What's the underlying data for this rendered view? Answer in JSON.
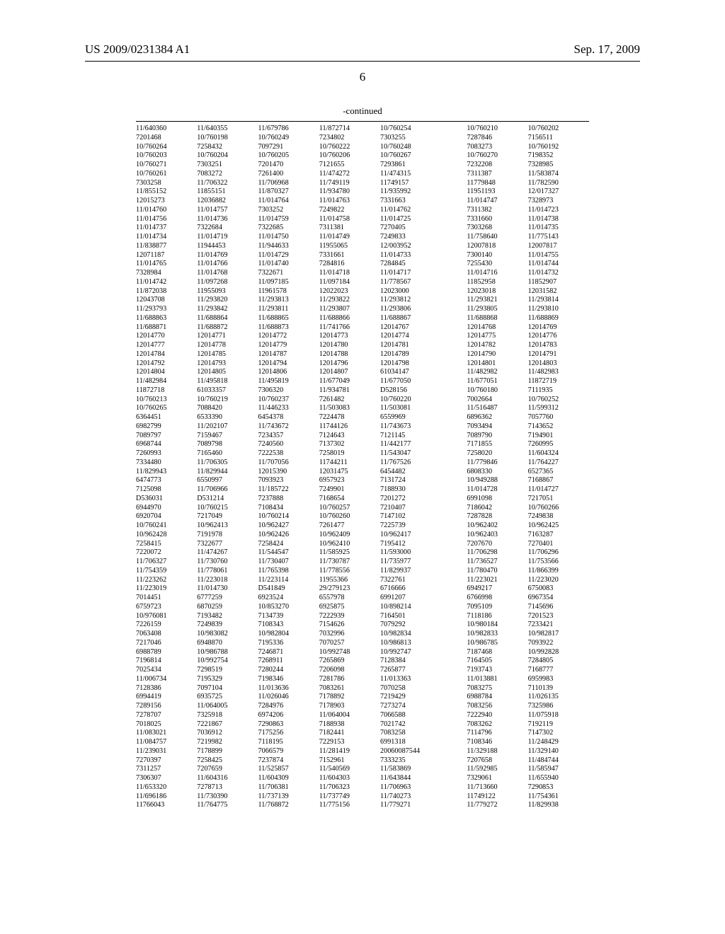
{
  "header": {
    "pub_number": "US 2009/0231384 A1",
    "pub_date": "Sep. 17, 2009"
  },
  "page_number": "6",
  "continued_label": "-continued",
  "table": {
    "columns": 7,
    "rows": [
      [
        "11/640360",
        "11/640355",
        "11/679786",
        "11/872714",
        "10/760254",
        "10/760210",
        "10/760202"
      ],
      [
        "7201468",
        "10/760198",
        "10/760249",
        "7234802",
        "7303255",
        "7287846",
        "7156511"
      ],
      [
        "10/760264",
        "7258432",
        "7097291",
        "10/760222",
        "10/760248",
        "7083273",
        "10/760192"
      ],
      [
        "10/760203",
        "10/760204",
        "10/760205",
        "10/760206",
        "10/760267",
        "10/760270",
        "7198352"
      ],
      [
        "10/760271",
        "7303251",
        "7201470",
        "7121655",
        "7293861",
        "7232208",
        "7328985"
      ],
      [
        "10/760261",
        "7083272",
        "7261400",
        "11/474272",
        "11/474315",
        "7311387",
        "11/583874"
      ],
      [
        "7303258",
        "11/706322",
        "11/706968",
        "11/749119",
        "11749157",
        "11779848",
        "11/782590"
      ],
      [
        "11/855152",
        "11855151",
        "11/870327",
        "11/934780",
        "11/935992",
        "11951193",
        "12/017327"
      ],
      [
        "12015273",
        "12036882",
        "11/014764",
        "11/014763",
        "7331663",
        "11/014747",
        "7328973"
      ],
      [
        "11/014760",
        "11/014757",
        "7303252",
        "7249822",
        "11/014762",
        "7311382",
        "11/014723"
      ],
      [
        "11/014756",
        "11/014736",
        "11/014759",
        "11/014758",
        "11/014725",
        "7331660",
        "11/014738"
      ],
      [
        "11/014737",
        "7322684",
        "7322685",
        "7311381",
        "7270405",
        "7303268",
        "11/014735"
      ],
      [
        "11/014734",
        "11/014719",
        "11/014750",
        "11/014749",
        "7249833",
        "11/758640",
        "11/775143"
      ],
      [
        "11/838877",
        "11944453",
        "11/944633",
        "11955065",
        "12/003952",
        "12007818",
        "12007817"
      ],
      [
        "12071187",
        "11/014769",
        "11/014729",
        "7331661",
        "11/014733",
        "7300140",
        "11/014755"
      ],
      [
        "11/014765",
        "11/014766",
        "11/014740",
        "7284816",
        "7284845",
        "7255430",
        "11/014744"
      ],
      [
        "7328984",
        "11/014768",
        "7322671",
        "11/014718",
        "11/014717",
        "11/014716",
        "11/014732"
      ],
      [
        "11/014742",
        "11/097268",
        "11/097185",
        "11/097184",
        "11/778567",
        "11852958",
        "11852907"
      ],
      [
        "11/872038",
        "11955093",
        "11961578",
        "12022023",
        "12023000",
        "12023018",
        "12031582"
      ],
      [
        "12043708",
        "11/293820",
        "11/293813",
        "11/293822",
        "11/293812",
        "11/293821",
        "11/293814"
      ],
      [
        "11/293793",
        "11/293842",
        "11/293811",
        "11/293807",
        "11/293806",
        "11/293805",
        "11/293810"
      ],
      [
        "11/688863",
        "11/688864",
        "11/688865",
        "11/688866",
        "11/688867",
        "11/688868",
        "11/688869"
      ],
      [
        "11/688871",
        "11/688872",
        "11/688873",
        "11/741766",
        "12014767",
        "12014768",
        "12014769"
      ],
      [
        "12014770",
        "12014771",
        "12014772",
        "12014773",
        "12014774",
        "12014775",
        "12014776"
      ],
      [
        "12014777",
        "12014778",
        "12014779",
        "12014780",
        "12014781",
        "12014782",
        "12014783"
      ],
      [
        "12014784",
        "12014785",
        "12014787",
        "12014788",
        "12014789",
        "12014790",
        "12014791"
      ],
      [
        "12014792",
        "12014793",
        "12014794",
        "12014796",
        "12014798",
        "12014801",
        "12014803"
      ],
      [
        "12014804",
        "12014805",
        "12014806",
        "12014807",
        "61034147",
        "11/482982",
        "11/482983"
      ],
      [
        "11/482984",
        "11/495818",
        "11/495819",
        "11/677049",
        "11/677050",
        "11/677051",
        "11872719"
      ],
      [
        "11872718",
        "61033357",
        "7306320",
        "11/934781",
        "D528156",
        "10/760180",
        "7111935"
      ],
      [
        "10/760213",
        "10/760219",
        "10/760237",
        "7261482",
        "10/760220",
        "7002664",
        "10/760252"
      ],
      [
        "10/760265",
        "7088420",
        "11/446233",
        "11/503083",
        "11/503081",
        "11/516487",
        "11/599312"
      ],
      [
        "6364451",
        "6533390",
        "6454378",
        "7224478",
        "6559969",
        "6896362",
        "7057760"
      ],
      [
        "6982799",
        "11/202107",
        "11/743672",
        "11744126",
        "11/743673",
        "7093494",
        "7143652"
      ],
      [
        "7089797",
        "7159467",
        "7234357",
        "7124643",
        "7121145",
        "7089790",
        "7194901"
      ],
      [
        "6968744",
        "7089798",
        "7240560",
        "7137302",
        "11/442177",
        "7171855",
        "7260995"
      ],
      [
        "7260993",
        "7165460",
        "7222538",
        "7258019",
        "11/543047",
        "7258020",
        "11/604324"
      ],
      [
        "7334480",
        "11/706305",
        "11/707056",
        "11744211",
        "11/767526",
        "11/779846",
        "11/764227"
      ],
      [
        "11/829943",
        "11/829944",
        "12015390",
        "12031475",
        "6454482",
        "6808330",
        "6527365"
      ],
      [
        "6474773",
        "6550997",
        "7093923",
        "6957923",
        "7131724",
        "10/949288",
        "7168867"
      ],
      [
        "7125098",
        "11/706966",
        "11/185722",
        "7249901",
        "7188930",
        "11/014728",
        "11/014727"
      ],
      [
        "D536031",
        "D531214",
        "7237888",
        "7168654",
        "7201272",
        "6991098",
        "7217051"
      ],
      [
        "6944970",
        "10/760215",
        "7108434",
        "10/760257",
        "7210407",
        "7186042",
        "10/760266"
      ],
      [
        "6920704",
        "7217049",
        "10/760214",
        "10/760260",
        "7147102",
        "7287828",
        "7249838"
      ],
      [
        "10/760241",
        "10/962413",
        "10/962427",
        "7261477",
        "7225739",
        "10/962402",
        "10/962425"
      ],
      [
        "10/962428",
        "7191978",
        "10/962426",
        "10/962409",
        "10/962417",
        "10/962403",
        "7163287"
      ],
      [
        "7258415",
        "7322677",
        "7258424",
        "10/962410",
        "7195412",
        "7207670",
        "7270401"
      ],
      [
        "7220072",
        "11/474267",
        "11/544547",
        "11/585925",
        "11/593000",
        "11/706298",
        "11/706296"
      ],
      [
        "11/706327",
        "11/730760",
        "11/730407",
        "11/730787",
        "11/735977",
        "11/736527",
        "11/753566"
      ],
      [
        "11/754359",
        "11/778061",
        "11/765398",
        "11/778556",
        "11/829937",
        "11/780470",
        "11/866399"
      ],
      [
        "11/223262",
        "11/223018",
        "11/223114",
        "11955366",
        "7322761",
        "11/223021",
        "11/223020"
      ],
      [
        "11/223019",
        "11/014730",
        "D541849",
        "29/279123",
        "6716666",
        "6949217",
        "6750083"
      ],
      [
        "7014451",
        "6777259",
        "6923524",
        "6557978",
        "6991207",
        "6766998",
        "6967354"
      ],
      [
        "6759723",
        "6870259",
        "10/853270",
        "6925875",
        "10/898214",
        "7095109",
        "7145696"
      ],
      [
        "10/976081",
        "7193482",
        "7134739",
        "7222939",
        "7164501",
        "7118186",
        "7201523"
      ],
      [
        "7226159",
        "7249839",
        "7108343",
        "7154626",
        "7079292",
        "10/980184",
        "7233421"
      ],
      [
        "7063408",
        "10/983082",
        "10/982804",
        "7032996",
        "10/982834",
        "10/982833",
        "10/982817"
      ],
      [
        "7217046",
        "6948870",
        "7195336",
        "7070257",
        "10/986813",
        "10/986785",
        "7093922"
      ],
      [
        "6988789",
        "10/986788",
        "7246871",
        "10/992748",
        "10/992747",
        "7187468",
        "10/992828"
      ],
      [
        "7196814",
        "10/992754",
        "7268911",
        "7265869",
        "7128384",
        "7164505",
        "7284805"
      ],
      [
        "7025434",
        "7298519",
        "7280244",
        "7206098",
        "7265877",
        "7193743",
        "7168777"
      ],
      [
        "11/006734",
        "7195329",
        "7198346",
        "7281786",
        "11/013363",
        "11/013881",
        "6959983"
      ],
      [
        "7128386",
        "7097104",
        "11/013636",
        "7083261",
        "7070258",
        "7083275",
        "7110139"
      ],
      [
        "6994419",
        "6935725",
        "11/026046",
        "7178892",
        "7219429",
        "6988784",
        "11/026135"
      ],
      [
        "7289156",
        "11/064005",
        "7284976",
        "7178903",
        "7273274",
        "7083256",
        "7325986"
      ],
      [
        "7278707",
        "7325918",
        "6974206",
        "11/064004",
        "7066588",
        "7222940",
        "11/075918"
      ],
      [
        "7018025",
        "7221867",
        "7290863",
        "7188938",
        "7021742",
        "7083262",
        "7192119"
      ],
      [
        "11/083021",
        "7036912",
        "7175256",
        "7182441",
        "7083258",
        "7114796",
        "7147302"
      ],
      [
        "11/084757",
        "7219982",
        "7118195",
        "7229153",
        "6991318",
        "7108346",
        "11/248429"
      ],
      [
        "11/239031",
        "7178899",
        "7066579",
        "11/281419",
        "20060087544",
        "11/329188",
        "11/329140"
      ],
      [
        "7270397",
        "7258425",
        "7237874",
        "7152961",
        "7333235",
        "7207658",
        "11/484744"
      ],
      [
        "7311257",
        "7207659",
        "11/525857",
        "11/540569",
        "11/583869",
        "11/592985",
        "11/585947"
      ],
      [
        "7306307",
        "11/604316",
        "11/604309",
        "11/604303",
        "11/643844",
        "7329061",
        "11/655940"
      ],
      [
        "11/653320",
        "7278713",
        "11/706381",
        "11/706323",
        "11/706963",
        "11/713660",
        "7290853"
      ],
      [
        "11/696186",
        "11/730390",
        "11/737139",
        "11/737749",
        "11/740273",
        "11749122",
        "11/754361"
      ],
      [
        "11766043",
        "11/764775",
        "11/768872",
        "11/775156",
        "11/779271",
        "11/779272",
        "11/829938"
      ]
    ]
  }
}
